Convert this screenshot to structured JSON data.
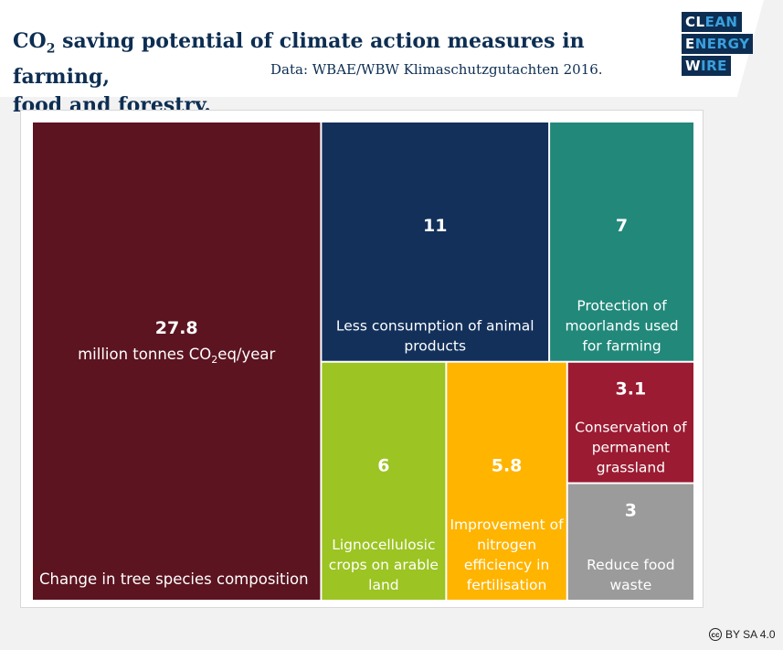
{
  "header": {
    "title_co": "CO",
    "title_sub": "2",
    "title_rest": " saving potential of climate action measures in farming,",
    "title_line2": "food and forestry.",
    "source": "Data: WBAE/WBW Klimaschutzgutachten 2016."
  },
  "logo": {
    "line1_a": "CL",
    "line1_b": "EAN",
    "line2_a": "E",
    "line2_b": "NERGY",
    "line3_a": "W",
    "line3_b": "IRE"
  },
  "license": {
    "icon": "cc",
    "text": "BY SA 4.0"
  },
  "chart_data": {
    "type": "treemap",
    "unit_pre": "million tonnes CO",
    "unit_sub": "2",
    "unit_post": "eq/year",
    "items": [
      {
        "label": "Change in tree species composition",
        "value": 27.8,
        "display": "27.8",
        "color": "#5b1420"
      },
      {
        "label": "Less consumption of animal products",
        "value": 11,
        "display": "11",
        "color": "#12305a"
      },
      {
        "label": "Protection of moorlands used for farming",
        "value": 7,
        "display": "7",
        "color": "#21887a"
      },
      {
        "label": "Lignocellulosic crops on arable land",
        "value": 6,
        "display": "6",
        "color": "#9cc422"
      },
      {
        "label": "Improvement of nitrogen efficiency in fertilisation",
        "value": 5.8,
        "display": "5.8",
        "color": "#ffb400"
      },
      {
        "label": "Conservation of permanent grassland",
        "value": 3.1,
        "display": "3.1",
        "color": "#9b1b32"
      },
      {
        "label": "Reduce food waste",
        "value": 3,
        "display": "3",
        "color": "#9b9b9b"
      }
    ]
  }
}
